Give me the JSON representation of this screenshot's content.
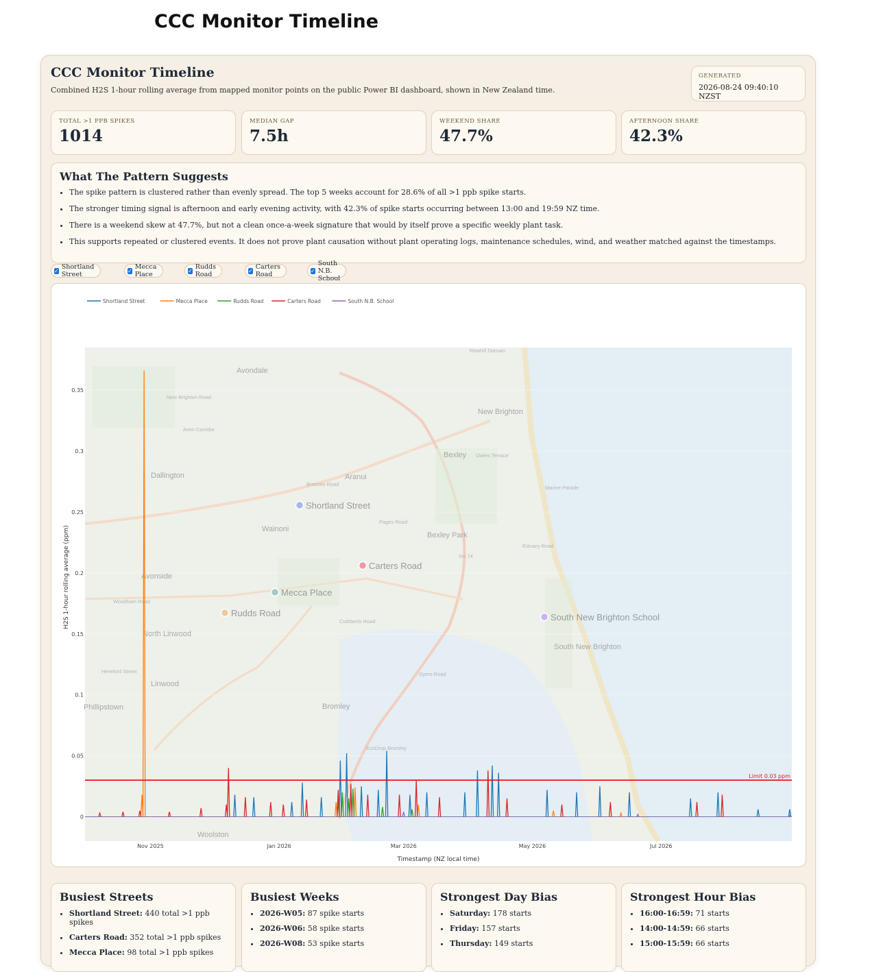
{
  "page": {
    "title": "CCC Monitor Timeline"
  },
  "panel": {
    "title": "CCC Monitor Timeline",
    "subtitle": "Combined H2S 1-hour rolling average from mapped monitor points on the public Power BI dashboard, shown in New Zealand time.",
    "generated_label": "GENERATED",
    "generated_value": "2026-08-24 09:40:10 NZST"
  },
  "stats": [
    {
      "label": "TOTAL >1 PPB SPIKES",
      "value": "1014"
    },
    {
      "label": "MEDIAN GAP",
      "value": "7.5h"
    },
    {
      "label": "WEEKEND SHARE",
      "value": "47.7%"
    },
    {
      "label": "AFTERNOON SHARE",
      "value": "42.3%"
    }
  ],
  "insights": {
    "title": "What The Pattern Suggests",
    "items": [
      "The spike pattern is clustered rather than evenly spread. The top 5 weeks account for 28.6% of all >1 ppb spike starts.",
      "The stronger timing signal is afternoon and early evening activity, with 42.3% of spike starts occurring between 13:00 and 19:59 NZ time.",
      "There is a weekend skew at 47.7%, but not a clean once-a-week signature that would by itself prove a specific weekly plant task.",
      "This supports repeated or clustered events. It does not prove plant causation without plant operating logs, maintenance schedules, wind, and weather matched against the timestamps."
    ]
  },
  "filters": [
    "Shortland Street",
    "Mecca Place",
    "Rudds Road",
    "Carters Road",
    "South N.B. School"
  ],
  "colors": {
    "Shortland Street": "#1f77b4",
    "Mecca Place": "#ff7f0e",
    "Rudds Road": "#2ca02c",
    "Carters Road": "#d62728",
    "South N.B. School": "#9467bd",
    "limit": "#e41a1c",
    "water": "#e3eef5",
    "land": "#eef0ea"
  },
  "map_labels": {
    "markers": [
      "Shortland Street",
      "Carters Road",
      "Mecca Place",
      "Rudds Road",
      "South New Brighton School"
    ],
    "places": [
      "Avondale",
      "New Brighton",
      "Dallington",
      "Aranui",
      "Wainoni",
      "Bexley",
      "Bexley Park",
      "Avonside",
      "North Linwood",
      "Linwood",
      "Phillipstown",
      "Bromley",
      "Woolston",
      "South New Brighton",
      "Rowhill Domain",
      "New Brighton Road",
      "Avon Corridor",
      "Woodham Road",
      "Hereford Street",
      "Pages Road",
      "Breezes Road",
      "Dyers Road",
      "Cuthberts Road",
      "SH 74",
      "Marine Parade",
      "Estuary Road",
      "EcoDrop Bromley",
      "Owles Terrace"
    ]
  },
  "chart_data": {
    "type": "line",
    "title": "",
    "xlabel": "Timestamp (NZ local time)",
    "ylabel": "H2S 1-hour rolling average (ppm)",
    "ylim": [
      -0.02,
      0.385
    ],
    "yticks": [
      0,
      0.05,
      0.1,
      0.15,
      0.2,
      0.25,
      0.3,
      0.35
    ],
    "ytick_labels": [
      "0",
      "0.05",
      "0.1",
      "0.15",
      "0.2",
      "0.25",
      "0.3",
      "0.35"
    ],
    "xlim": [
      "2025-10-01",
      "2026-09-01"
    ],
    "xticks": [
      "2025-11-01",
      "2026-01-01",
      "2026-03-01",
      "2026-05-01",
      "2026-07-01"
    ],
    "xtick_labels": [
      "Nov 2025",
      "Jan 2026",
      "Mar 2026",
      "May 2026",
      "Jul 2026"
    ],
    "legend_position": "top-left",
    "limit_line": {
      "value": 0.03,
      "label": "Limit 0.03 ppm"
    },
    "series": [
      {
        "name": "Shortland Street",
        "peaks": [
          [
            "2025-12-11",
            0.018
          ],
          [
            "2025-12-20",
            0.016
          ],
          [
            "2026-01-07",
            0.012
          ],
          [
            "2026-01-12",
            0.028
          ],
          [
            "2026-01-21",
            0.016
          ],
          [
            "2026-01-30",
            0.046
          ],
          [
            "2026-02-02",
            0.052
          ],
          [
            "2026-02-09",
            0.025
          ],
          [
            "2026-02-17",
            0.022
          ],
          [
            "2026-02-21",
            0.054
          ],
          [
            "2026-03-04",
            0.018
          ],
          [
            "2026-03-12",
            0.02
          ],
          [
            "2026-03-30",
            0.02
          ],
          [
            "2026-04-05",
            0.038
          ],
          [
            "2026-04-12",
            0.042
          ],
          [
            "2026-04-15",
            0.036
          ],
          [
            "2026-05-08",
            0.022
          ],
          [
            "2026-05-22",
            0.02
          ],
          [
            "2026-06-02",
            0.025
          ],
          [
            "2026-06-16",
            0.02
          ],
          [
            "2026-07-15",
            0.015
          ],
          [
            "2026-07-28",
            0.02
          ],
          [
            "2026-08-16",
            0.006
          ],
          [
            "2026-08-31",
            0.006
          ]
        ]
      },
      {
        "name": "Mecca Place",
        "peaks": [
          [
            "2025-10-28",
            0.018
          ],
          [
            "2025-10-29",
            0.366
          ],
          [
            "2026-01-28",
            0.012
          ],
          [
            "2026-02-04",
            0.02
          ],
          [
            "2026-02-06",
            0.024
          ],
          [
            "2026-03-08",
            0.01
          ],
          [
            "2026-05-11",
            0.005
          ],
          [
            "2026-06-12",
            0.003
          ]
        ]
      },
      {
        "name": "Rudds Road",
        "peaks": [
          [
            "2026-01-29",
            0.012
          ],
          [
            "2026-01-31",
            0.02
          ],
          [
            "2026-02-03",
            0.015
          ],
          [
            "2026-02-05",
            0.023
          ],
          [
            "2026-02-19",
            0.008
          ],
          [
            "2026-03-05",
            0.006
          ]
        ]
      },
      {
        "name": "Carters Road",
        "peaks": [
          [
            "2025-10-08",
            0.003
          ],
          [
            "2025-10-19",
            0.004
          ],
          [
            "2025-10-27",
            0.005
          ],
          [
            "2025-11-10",
            0.004
          ],
          [
            "2025-11-25",
            0.007
          ],
          [
            "2025-12-07",
            0.01
          ],
          [
            "2025-12-08",
            0.04
          ],
          [
            "2025-12-16",
            0.016
          ],
          [
            "2025-12-28",
            0.012
          ],
          [
            "2026-01-03",
            0.01
          ],
          [
            "2026-01-14",
            0.014
          ],
          [
            "2026-01-29",
            0.022
          ],
          [
            "2026-02-04",
            0.027
          ],
          [
            "2026-02-12",
            0.018
          ],
          [
            "2026-02-27",
            0.018
          ],
          [
            "2026-03-07",
            0.03
          ],
          [
            "2026-03-18",
            0.016
          ],
          [
            "2026-04-10",
            0.038
          ],
          [
            "2026-04-19",
            0.015
          ],
          [
            "2026-05-15",
            0.01
          ],
          [
            "2026-06-07",
            0.012
          ],
          [
            "2026-07-18",
            0.012
          ],
          [
            "2026-07-30",
            0.018
          ]
        ]
      },
      {
        "name": "South N.B. School",
        "peaks": [
          [
            "2025-10-05",
            0.0
          ],
          [
            "2026-03-01",
            0.004
          ],
          [
            "2026-06-20",
            0.002
          ],
          [
            "2026-08-31",
            0.001
          ]
        ]
      }
    ]
  },
  "bottom_cards": [
    {
      "title": "Busiest Streets",
      "items": [
        {
          "k": "Shortland Street:",
          "v": " 440 total >1 ppb spikes"
        },
        {
          "k": "Carters Road:",
          "v": " 352 total >1 ppb spikes"
        },
        {
          "k": "Mecca Place:",
          "v": " 98 total >1 ppb spikes"
        }
      ]
    },
    {
      "title": "Busiest Weeks",
      "items": [
        {
          "k": "2026-W05:",
          "v": " 87 spike starts"
        },
        {
          "k": "2026-W06:",
          "v": " 58 spike starts"
        },
        {
          "k": "2026-W08:",
          "v": " 53 spike starts"
        }
      ]
    },
    {
      "title": "Strongest Day Bias",
      "items": [
        {
          "k": "Saturday:",
          "v": " 178 starts"
        },
        {
          "k": "Friday:",
          "v": " 157 starts"
        },
        {
          "k": "Thursday:",
          "v": " 149 starts"
        }
      ]
    },
    {
      "title": "Strongest Hour Bias",
      "items": [
        {
          "k": "16:00-16:59:",
          "v": " 71 starts"
        },
        {
          "k": "14:00-14:59:",
          "v": " 66 starts"
        },
        {
          "k": "15:00-15:59:",
          "v": " 66 starts"
        }
      ]
    }
  ]
}
